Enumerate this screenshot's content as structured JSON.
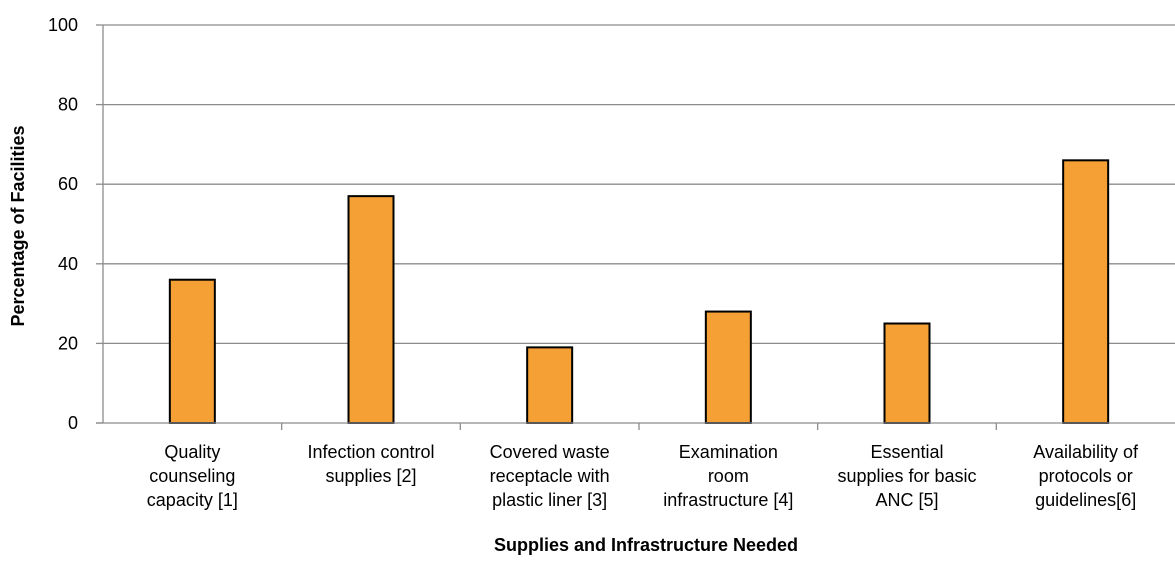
{
  "chart_data": {
    "type": "bar",
    "title": "",
    "xlabel": "Supplies and Infrastructure Needed",
    "ylabel": "Percentage of Facilities",
    "ylim": [
      0,
      100
    ],
    "yticks": [
      "0",
      "20",
      "40",
      "60",
      "80",
      "100"
    ],
    "grid": true,
    "categories": [
      [
        "Quality",
        "counseling",
        "capacity [1]"
      ],
      [
        "Infection control",
        "supplies [2]"
      ],
      [
        "Covered waste",
        "receptacle with",
        "plastic liner [3]"
      ],
      [
        "Examination",
        "room",
        "infrastructure [4]"
      ],
      [
        "Essential",
        "supplies for basic",
        "ANC [5]"
      ],
      [
        "Availability of",
        "protocols or",
        "guidelines[6]"
      ]
    ],
    "values": [
      36,
      57,
      19,
      28,
      25,
      66
    ],
    "colors": {
      "bar": "#F4A035",
      "bar_edge": "#000000",
      "grid": "#8c8c8c",
      "axis": "#8c8c8c"
    }
  }
}
